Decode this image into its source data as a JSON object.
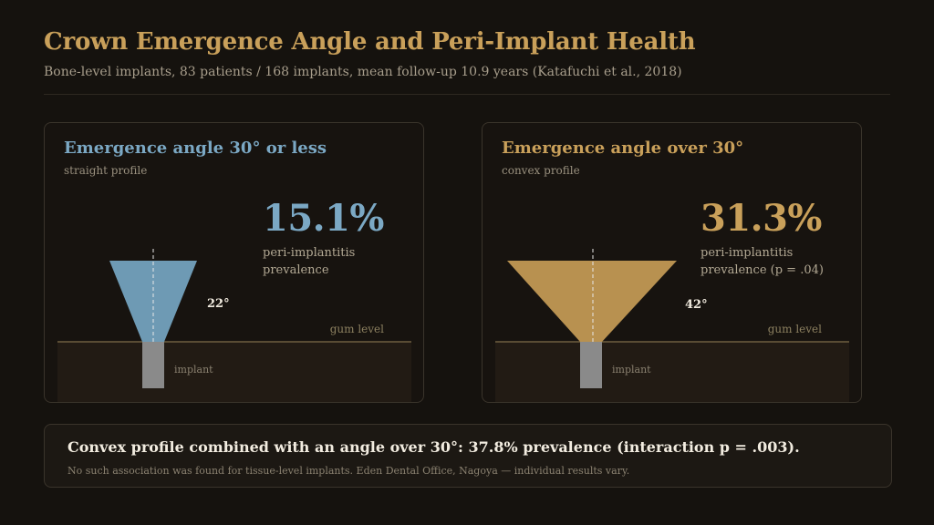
{
  "header": {
    "title": "Crown Emergence Angle and Peri-Implant Health",
    "subtitle": "Bone-level implants, 83 patients / 168 implants, mean follow-up 10.9 years (Katafuchi et al., 2018)"
  },
  "colors": {
    "accent_gold": "#c9a05a",
    "accent_blue": "#7ba8c4",
    "crown_blue": "#6e9ab4",
    "crown_gold": "#b89150",
    "implant_gray": "#8a8a8a",
    "gum_line": "#6e6040"
  },
  "cards": [
    {
      "title": "Emergence angle 30° or less",
      "subtitle": "straight profile",
      "stat": "15.1%",
      "desc_line1": "peri-implantitis",
      "desc_line2": "prevalence",
      "angle_label": "22°",
      "angle_deg": 22,
      "gum_label": "gum level",
      "implant_label": "implant"
    },
    {
      "title": "Emergence angle over 30°",
      "subtitle": "convex profile",
      "stat": "31.3%",
      "desc_line1": "peri-implantitis",
      "desc_line2": "prevalence  (p = .04)",
      "angle_label": "42°",
      "angle_deg": 42,
      "gum_label": "gum level",
      "implant_label": "implant"
    }
  ],
  "footer": {
    "main": "Convex profile combined with an angle over 30°: 37.8% prevalence (interaction p = .003).",
    "note": "No such association was found for tissue-level implants. Eden Dental Office, Nagoya — individual results vary."
  }
}
